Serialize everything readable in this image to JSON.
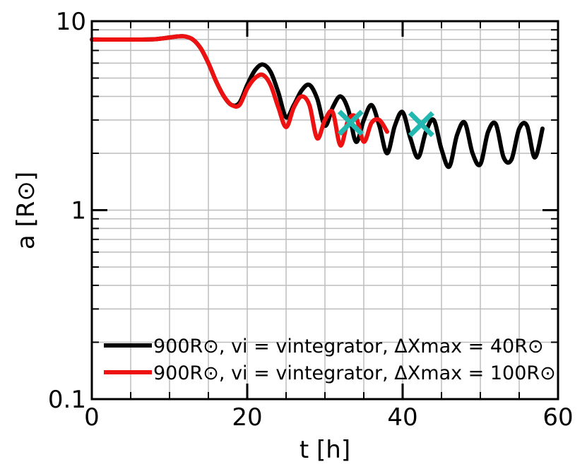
{
  "chart_data": {
    "type": "line",
    "title": "",
    "xlabel": "t [h]",
    "ylabel": "a [R⊙]",
    "xlim": [
      0,
      60
    ],
    "ylim": [
      0.1,
      10
    ],
    "yscale": "log",
    "grid": true,
    "legend_position": "lower-center",
    "x_tick_labels": [
      "0",
      "20",
      "40",
      "60"
    ],
    "y_tick_labels": [
      "0.1",
      "1",
      "10"
    ],
    "series": [
      {
        "name": "900R⊙, vi = vintegrator, ΔXmax = 40R⊙",
        "color": "#000000",
        "x": [
          0,
          7,
          9,
          11,
          12,
          13,
          14,
          15,
          16,
          17,
          18,
          19,
          20,
          21,
          22,
          23,
          24,
          25,
          26,
          27,
          28,
          29,
          30,
          31,
          32,
          33,
          34,
          35,
          36,
          37,
          38,
          39,
          40,
          41,
          42,
          43,
          44,
          45,
          46,
          47,
          48,
          49,
          50,
          51,
          52,
          53,
          54,
          55,
          56,
          57,
          58
        ],
        "y": [
          8.0,
          8.0,
          8.1,
          8.3,
          8.3,
          8.0,
          7.2,
          6.0,
          4.8,
          4.0,
          3.6,
          3.7,
          4.6,
          5.5,
          5.9,
          5.4,
          4.2,
          3.1,
          3.6,
          4.3,
          4.6,
          3.9,
          2.8,
          3.5,
          4.0,
          3.4,
          2.3,
          3.0,
          3.6,
          2.8,
          2.0,
          2.8,
          3.3,
          2.4,
          1.9,
          2.6,
          3.0,
          2.1,
          1.7,
          2.5,
          2.9,
          2.0,
          1.75,
          2.6,
          2.85,
          1.9,
          1.85,
          2.7,
          2.8,
          1.9,
          2.7
        ]
      },
      {
        "name": "900R⊙, vi = vintegrator, ΔXmax = 100R⊙",
        "color": "#ee1111",
        "x": [
          0,
          7,
          9,
          11,
          12,
          13,
          14,
          15,
          16,
          17,
          18,
          19,
          20,
          21,
          22,
          23,
          24,
          25,
          26,
          27,
          28,
          29,
          30,
          31,
          32,
          33,
          34,
          35,
          36,
          37,
          38
        ],
        "y": [
          8.0,
          8.0,
          8.1,
          8.3,
          8.3,
          8.0,
          7.2,
          6.0,
          4.8,
          4.0,
          3.6,
          3.6,
          4.4,
          5.0,
          5.2,
          4.6,
          3.5,
          2.75,
          3.5,
          4.0,
          3.6,
          2.4,
          3.0,
          3.3,
          2.2,
          3.0,
          3.1,
          2.3,
          2.9,
          3.0,
          2.6
        ]
      }
    ],
    "markers": [
      {
        "label": "",
        "x": 33.3,
        "y": 2.9,
        "color": "#22b8b0",
        "shape": "x"
      },
      {
        "label": "",
        "x": 42.4,
        "y": 2.85,
        "color": "#22b8b0",
        "shape": "x"
      }
    ]
  }
}
